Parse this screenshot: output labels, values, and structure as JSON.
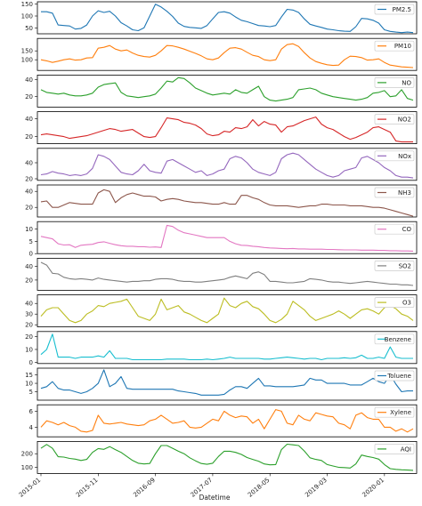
{
  "chart_data": {
    "type": "line",
    "xlabel": "Datetime",
    "x_ticks": [
      "2015-01",
      "2015-11",
      "2016-09",
      "2017-07",
      "2018-05",
      "2019-03",
      "2020-01"
    ],
    "x_tick_positions": [
      0,
      10,
      20,
      30,
      40,
      50,
      60
    ],
    "x_count": 66,
    "grid": false,
    "legend_placement": "right",
    "panels": [
      {
        "name": "PM2.5",
        "color": "#1f77b4",
        "ylim": [
          25,
          160
        ],
        "yticks": [
          50,
          100,
          150
        ],
        "values": [
          118,
          118,
          112,
          62,
          60,
          58,
          45,
          48,
          62,
          100,
          122,
          115,
          120,
          100,
          72,
          58,
          42,
          38,
          50,
          100,
          150,
          138,
          120,
          98,
          70,
          56,
          52,
          50,
          48,
          60,
          88,
          115,
          118,
          112,
          96,
          82,
          76,
          68,
          60,
          58,
          55,
          60,
          96,
          128,
          125,
          115,
          88,
          65,
          58,
          52,
          45,
          42,
          38,
          36,
          35,
          55,
          90,
          88,
          82,
          70,
          42,
          35,
          32,
          30,
          32,
          30
        ]
      },
      {
        "name": "PM10",
        "color": "#ff7f0e",
        "ylim": [
          40,
          220
        ],
        "yticks": [
          100,
          150
        ],
        "values": [
          100,
          94,
          85,
          92,
          100,
          105,
          98,
          100,
          110,
          112,
          165,
          170,
          180,
          160,
          150,
          155,
          138,
          125,
          118,
          115,
          125,
          150,
          180,
          178,
          170,
          160,
          148,
          136,
          122,
          105,
          100,
          110,
          140,
          165,
          168,
          160,
          142,
          125,
          118,
          100,
          95,
          100,
          160,
          185,
          190,
          175,
          140,
          110,
          90,
          80,
          72,
          68,
          70,
          100,
          120,
          118,
          112,
          98,
          100,
          105,
          85,
          70,
          65,
          60,
          58,
          56
        ]
      },
      {
        "name": "NO",
        "color": "#2ca02c",
        "ylim": [
          8,
          45
        ],
        "yticks": [
          20,
          40
        ],
        "values": [
          28,
          25,
          24,
          23,
          24,
          22,
          21,
          21,
          22,
          24,
          31,
          34,
          35,
          36,
          25,
          21,
          20,
          19,
          20,
          21,
          23,
          30,
          38,
          37,
          42,
          41,
          36,
          30,
          27,
          24,
          22,
          23,
          24,
          23,
          28,
          25,
          24,
          28,
          32,
          20,
          16,
          15,
          16,
          17,
          19,
          28,
          29,
          30,
          28,
          24,
          22,
          20,
          19,
          18,
          17,
          16,
          17,
          19,
          24,
          25,
          27,
          20,
          21,
          28,
          18,
          16
        ]
      },
      {
        "name": "NO2",
        "color": "#d62728",
        "ylim": [
          12,
          48
        ],
        "yticks": [
          20,
          40
        ],
        "values": [
          22,
          23,
          22,
          21,
          20,
          18,
          19,
          20,
          21,
          23,
          25,
          27,
          29,
          28,
          26,
          27,
          28,
          24,
          20,
          19,
          20,
          30,
          41,
          40,
          39,
          36,
          35,
          33,
          29,
          23,
          21,
          22,
          26,
          25,
          30,
          29,
          31,
          39,
          32,
          37,
          34,
          33,
          25,
          31,
          32,
          35,
          38,
          40,
          42,
          34,
          30,
          28,
          24,
          20,
          17,
          19,
          22,
          25,
          30,
          31,
          28,
          25,
          15,
          14,
          14,
          14
        ]
      },
      {
        "name": "NOx",
        "color": "#9467bd",
        "ylim": [
          18,
          58
        ],
        "yticks": [
          20,
          40
        ],
        "values": [
          25,
          26,
          29,
          27,
          26,
          24,
          25,
          24,
          26,
          33,
          50,
          48,
          44,
          36,
          28,
          26,
          25,
          30,
          38,
          30,
          28,
          27,
          42,
          44,
          40,
          36,
          32,
          28,
          30,
          24,
          26,
          30,
          32,
          45,
          48,
          46,
          40,
          32,
          28,
          26,
          24,
          28,
          45,
          50,
          52,
          50,
          44,
          38,
          32,
          28,
          24,
          22,
          24,
          30,
          32,
          34,
          46,
          48,
          44,
          40,
          34,
          30,
          24,
          22,
          22,
          21
        ]
      },
      {
        "name": "NH3",
        "color": "#8c564b",
        "ylim": [
          8,
          48
        ],
        "yticks": [
          20,
          40
        ],
        "values": [
          27,
          28,
          20,
          20,
          23,
          26,
          25,
          24,
          24,
          24,
          38,
          42,
          40,
          26,
          32,
          36,
          38,
          36,
          34,
          34,
          33,
          28,
          30,
          31,
          30,
          28,
          27,
          26,
          26,
          25,
          24,
          24,
          26,
          24,
          24,
          35,
          35,
          32,
          30,
          26,
          23,
          22,
          22,
          22,
          21,
          20,
          21,
          22,
          22,
          24,
          24,
          23,
          23,
          23,
          22,
          22,
          22,
          21,
          20,
          20,
          19,
          17,
          15,
          13,
          11,
          9
        ]
      },
      {
        "name": "CO",
        "color": "#e377c2",
        "ylim": [
          0,
          13
        ],
        "yticks": [
          0,
          5,
          10
        ],
        "values": [
          7,
          6.5,
          6,
          4,
          3.5,
          3.6,
          2.5,
          3.4,
          3.6,
          3.8,
          4.5,
          4.8,
          4.2,
          3.6,
          3.2,
          3,
          3,
          2.8,
          2.8,
          2.6,
          2.7,
          2.5,
          11.5,
          11,
          9.5,
          8.5,
          8,
          7.5,
          7,
          6.5,
          6.5,
          6.5,
          6.5,
          5,
          4,
          3.4,
          3.3,
          3,
          2.8,
          2.5,
          2.3,
          2.2,
          2.1,
          2,
          2.1,
          1.9,
          1.9,
          1.8,
          1.8,
          1.8,
          1.7,
          1.7,
          1.6,
          1.5,
          1.5,
          1.5,
          1.4,
          1.4,
          1.4,
          1.3,
          1.3,
          1.2,
          1.2,
          1.1,
          1.1,
          1
        ]
      },
      {
        "name": "SO2",
        "color": "#7f7f7f",
        "ylim": [
          5,
          52
        ],
        "yticks": [
          20,
          40
        ],
        "values": [
          46,
          42,
          30,
          29,
          24,
          22,
          21,
          22,
          21,
          20,
          23,
          21,
          20,
          19,
          18,
          17,
          18,
          18,
          19,
          19,
          21,
          22,
          22,
          21,
          19,
          18,
          18,
          17,
          17,
          18,
          19,
          20,
          21,
          24,
          26,
          24,
          22,
          30,
          32,
          28,
          18,
          18,
          17,
          16,
          16,
          17,
          18,
          22,
          21,
          20,
          18,
          17,
          17,
          16,
          15,
          16,
          17,
          18,
          17,
          16,
          15,
          14,
          14,
          13,
          13,
          12
        ]
      },
      {
        "name": "O3",
        "color": "#bcbd22",
        "ylim": [
          18,
          48
        ],
        "yticks": [
          20,
          30,
          40
        ],
        "values": [
          28,
          34,
          36,
          36,
          30,
          24,
          22,
          24,
          30,
          33,
          38,
          37,
          40,
          41,
          42,
          44,
          36,
          28,
          26,
          24,
          30,
          44,
          34,
          36,
          38,
          32,
          30,
          27,
          24,
          22,
          26,
          30,
          45,
          38,
          36,
          40,
          42,
          37,
          35,
          30,
          24,
          22,
          25,
          30,
          42,
          38,
          34,
          28,
          24,
          26,
          28,
          30,
          33,
          30,
          26,
          30,
          34,
          35,
          33,
          30,
          36,
          38,
          35,
          30,
          28,
          24
        ]
      },
      {
        "name": "Benzene",
        "color": "#17becf",
        "ylim": [
          -1,
          24
        ],
        "yticks": [
          0,
          10,
          20
        ],
        "values": [
          6,
          10,
          22,
          4,
          4,
          4,
          3,
          4,
          4,
          4,
          5,
          4,
          9,
          3,
          3,
          3,
          2,
          2,
          2,
          2,
          2,
          2,
          2.5,
          2.5,
          2.5,
          2.5,
          2,
          2,
          2,
          2.5,
          2,
          2.5,
          3,
          4,
          3,
          3,
          3,
          3,
          3,
          2.5,
          2.5,
          3,
          3.5,
          4,
          3.5,
          3,
          2.5,
          3,
          3,
          2,
          3,
          3,
          3,
          3.5,
          3,
          3.5,
          5.5,
          3,
          3,
          4,
          3,
          12,
          4,
          3,
          3,
          3
        ]
      },
      {
        "name": "Toluene",
        "color": "#1f77b4",
        "ylim": [
          0,
          19
        ],
        "yticks": [
          5,
          10,
          15
        ],
        "values": [
          7,
          8,
          11,
          7,
          6,
          6,
          5,
          4,
          5,
          7,
          10,
          18,
          8,
          10,
          14,
          7,
          6.5,
          6.5,
          6.5,
          6.5,
          6.5,
          6.5,
          6.5,
          6.5,
          5.5,
          5,
          4.5,
          4,
          3,
          3,
          3,
          3,
          3.5,
          6,
          8,
          8,
          7,
          10,
          13,
          8.5,
          8.5,
          8,
          8,
          8,
          8,
          8.5,
          9,
          13,
          12,
          12,
          10,
          10,
          10,
          10,
          9,
          9,
          9,
          11,
          13,
          11,
          10,
          15,
          9.5,
          5,
          5.5,
          5.5
        ]
      },
      {
        "name": "Xylene",
        "color": "#ff7f0e",
        "ylim": [
          2.8,
          6.8
        ],
        "yticks": [
          4,
          6
        ],
        "values": [
          4,
          4.8,
          4.6,
          4.3,
          4.6,
          4.2,
          4,
          3.5,
          3.4,
          3.6,
          5.5,
          4.5,
          4.4,
          4.5,
          4.6,
          4.4,
          4.3,
          4.2,
          4.3,
          4.8,
          5,
          5.5,
          5,
          4.5,
          4.6,
          4.8,
          4,
          3.9,
          4,
          4.5,
          5,
          4.8,
          6,
          5.5,
          5.2,
          5.4,
          5.3,
          4.5,
          5,
          3.8,
          5,
          6.2,
          6,
          4.5,
          4.3,
          5.5,
          5,
          4.8,
          5.8,
          5.6,
          5.4,
          5.3,
          4.5,
          4.3,
          3.8,
          5.5,
          5.8,
          5.2,
          5,
          5,
          4,
          4,
          3.5,
          3.8,
          3.4,
          3.8
        ]
      },
      {
        "name": "AQI",
        "color": "#2ca02c",
        "ylim": [
          55,
          290
        ],
        "yticks": [
          100,
          200
        ],
        "values": [
          240,
          268,
          240,
          178,
          175,
          165,
          160,
          150,
          158,
          210,
          238,
          232,
          252,
          230,
          210,
          180,
          150,
          130,
          125,
          128,
          200,
          260,
          260,
          240,
          218,
          200,
          170,
          148,
          128,
          122,
          130,
          180,
          218,
          218,
          210,
          195,
          172,
          158,
          145,
          125,
          118,
          120,
          230,
          270,
          265,
          260,
          220,
          170,
          158,
          150,
          120,
          110,
          100,
          98,
          95,
          125,
          190,
          180,
          172,
          160,
          120,
          90,
          85,
          82,
          80,
          78
        ]
      }
    ]
  }
}
